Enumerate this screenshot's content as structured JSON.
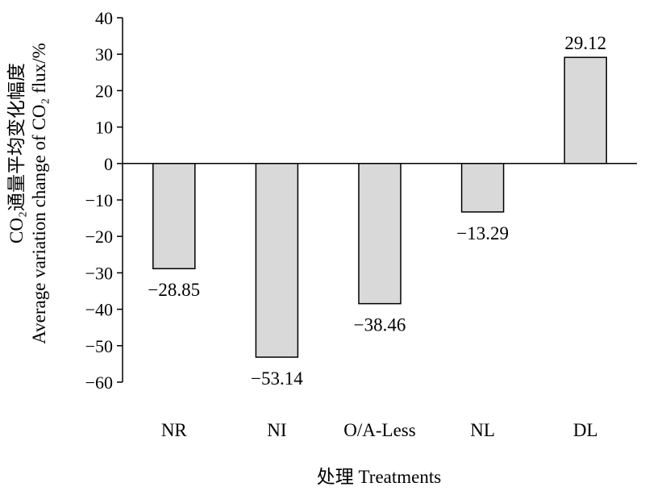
{
  "chart_data": {
    "type": "bar",
    "categories": [
      "NR",
      "NI",
      "O/A-Less",
      "NL",
      "DL"
    ],
    "values": [
      -28.85,
      -53.14,
      -38.46,
      -13.29,
      29.12
    ],
    "data_labels": [
      "−28.85",
      "−53.14",
      "−38.46",
      "−13.29",
      "29.12"
    ],
    "y_ticks": [
      40,
      30,
      20,
      10,
      0,
      -10,
      -20,
      -30,
      -40,
      -50,
      -60
    ],
    "ylim": [
      -60,
      40
    ],
    "xlabel": "处理 Treatments",
    "ylabel_line1": "CO₂通量平均变化幅度",
    "ylabel_line2": "Average variation change of CO₂ flux/%",
    "grid": false,
    "bar_color": "#d9d9d9",
    "bar_edge_color": "#000000"
  }
}
